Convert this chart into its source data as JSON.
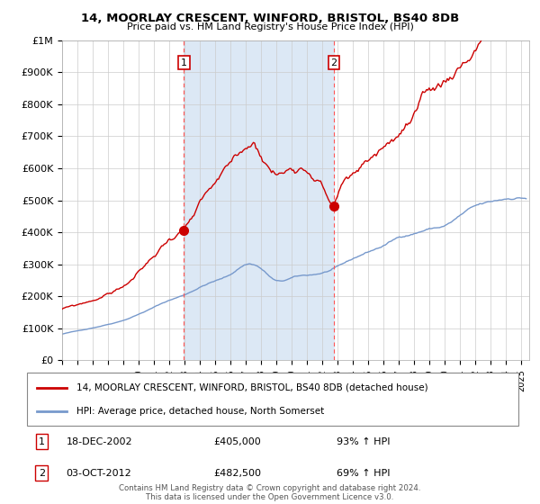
{
  "title1": "14, MOORLAY CRESCENT, WINFORD, BRISTOL, BS40 8DB",
  "title2": "Price paid vs. HM Land Registry's House Price Index (HPI)",
  "ylabel_ticks": [
    "£0",
    "£100K",
    "£200K",
    "£300K",
    "£400K",
    "£500K",
    "£600K",
    "£700K",
    "£800K",
    "£900K",
    "£1M"
  ],
  "ytick_values": [
    0,
    100000,
    200000,
    300000,
    400000,
    500000,
    600000,
    700000,
    800000,
    900000,
    1000000
  ],
  "ylim": [
    0,
    1000000
  ],
  "xlim_start": 1995.0,
  "xlim_end": 2025.5,
  "sale1_x": 2002.96,
  "sale1_y": 405000,
  "sale2_x": 2012.75,
  "sale2_y": 482500,
  "sale1_label": "18-DEC-2002",
  "sale1_price": "£405,000",
  "sale1_hpi": "93% ↑ HPI",
  "sale2_label": "03-OCT-2012",
  "sale2_price": "£482,500",
  "sale2_hpi": "69% ↑ HPI",
  "legend_line1": "14, MOORLAY CRESCENT, WINFORD, BRISTOL, BS40 8DB (detached house)",
  "legend_line2": "HPI: Average price, detached house, North Somerset",
  "footer": "Contains HM Land Registry data © Crown copyright and database right 2024.\nThis data is licensed under the Open Government Licence v3.0.",
  "hpi_color": "#7799cc",
  "price_color": "#cc0000",
  "bg_shaded": "#dce8f5",
  "vline_color": "#ff5555",
  "box_color": "#cc0000"
}
